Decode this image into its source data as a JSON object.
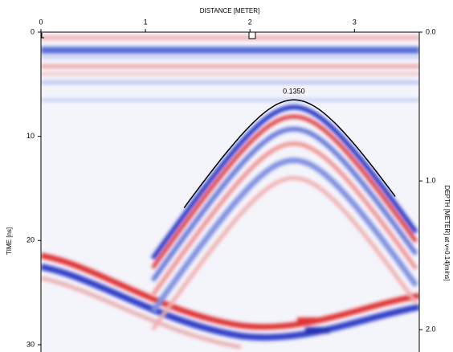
{
  "chart_data": {
    "type": "radargram",
    "x_label": "DISTANCE [METER]",
    "y_label": "TIME [ns]",
    "y2_label": "DEPTH [METER] at v=0.14[m/ns]",
    "xlim": [
      0,
      3.62
    ],
    "xticks": [
      0,
      1,
      2,
      3
    ],
    "ylim": [
      0,
      30.7
    ],
    "yticks": [
      0,
      10,
      20,
      30
    ],
    "y2lim": [
      0,
      2.15
    ],
    "y2ticks": [
      {
        "value": 0,
        "label": "0.0"
      },
      {
        "value": 1,
        "label": "1.0"
      },
      {
        "value": 2,
        "label": "2.0"
      }
    ],
    "hyperbola": {
      "apex_x": 2.42,
      "apex_t": 6.5,
      "x_range": [
        1.37,
        3.39
      ],
      "velocity": 0.135,
      "label": "0.1350",
      "color": "#000000"
    }
  }
}
